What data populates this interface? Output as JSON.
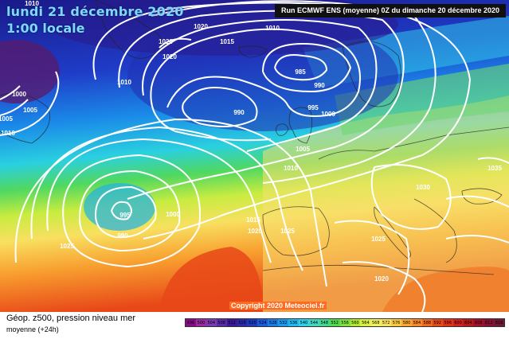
{
  "header": {
    "date_title": "lundi 21 décembre 2020",
    "time_title": "1:00 locale",
    "run_info": "Run ECMWF ENS (moyenne) 0Z du dimanche 20 décembre 2020"
  },
  "copyright": "Copyright 2020 Meteociel.fr",
  "footer": {
    "title": "Géop. z500, pression niveau mer",
    "subtitle": "moyenne   (+24h)"
  },
  "isobar_labels": [
    "1010",
    "1020",
    "1015",
    "1010",
    "1020",
    "1020",
    "1010",
    "985",
    "990",
    "990",
    "995",
    "1000",
    "1005",
    "1005",
    "1000",
    "1005",
    "1010",
    "1010",
    "995",
    "990",
    "1000",
    "1015",
    "1020",
    "1025",
    "1025",
    "1030",
    "1025",
    "1020",
    "1035"
  ],
  "color_scale": {
    "labels": [
      "496",
      "500",
      "504",
      "508",
      "512",
      "516",
      "520",
      "524",
      "528",
      "532",
      "536",
      "540",
      "544",
      "548",
      "552",
      "556",
      "560",
      "564",
      "568",
      "572",
      "576",
      "580",
      "584",
      "588",
      "592",
      "596",
      "600",
      "604",
      "608",
      "612",
      "616"
    ],
    "colors": [
      "#8a0a8a",
      "#9a2aa0",
      "#7a3ab0",
      "#5a2aa8",
      "#3a1a98",
      "#2a2aa8",
      "#1a3ac0",
      "#1a5ad8",
      "#1a7ae8",
      "#1a9aef",
      "#20b8f0",
      "#30d0e8",
      "#40d8c0",
      "#40d890",
      "#50d850",
      "#80e040",
      "#b0e830",
      "#d8f040",
      "#f0f060",
      "#f8e060",
      "#f8c840",
      "#f8a830",
      "#f88828",
      "#f06820",
      "#e84818",
      "#e03018",
      "#d02020",
      "#b81818",
      "#a01028",
      "#881030",
      "#701838"
    ]
  }
}
